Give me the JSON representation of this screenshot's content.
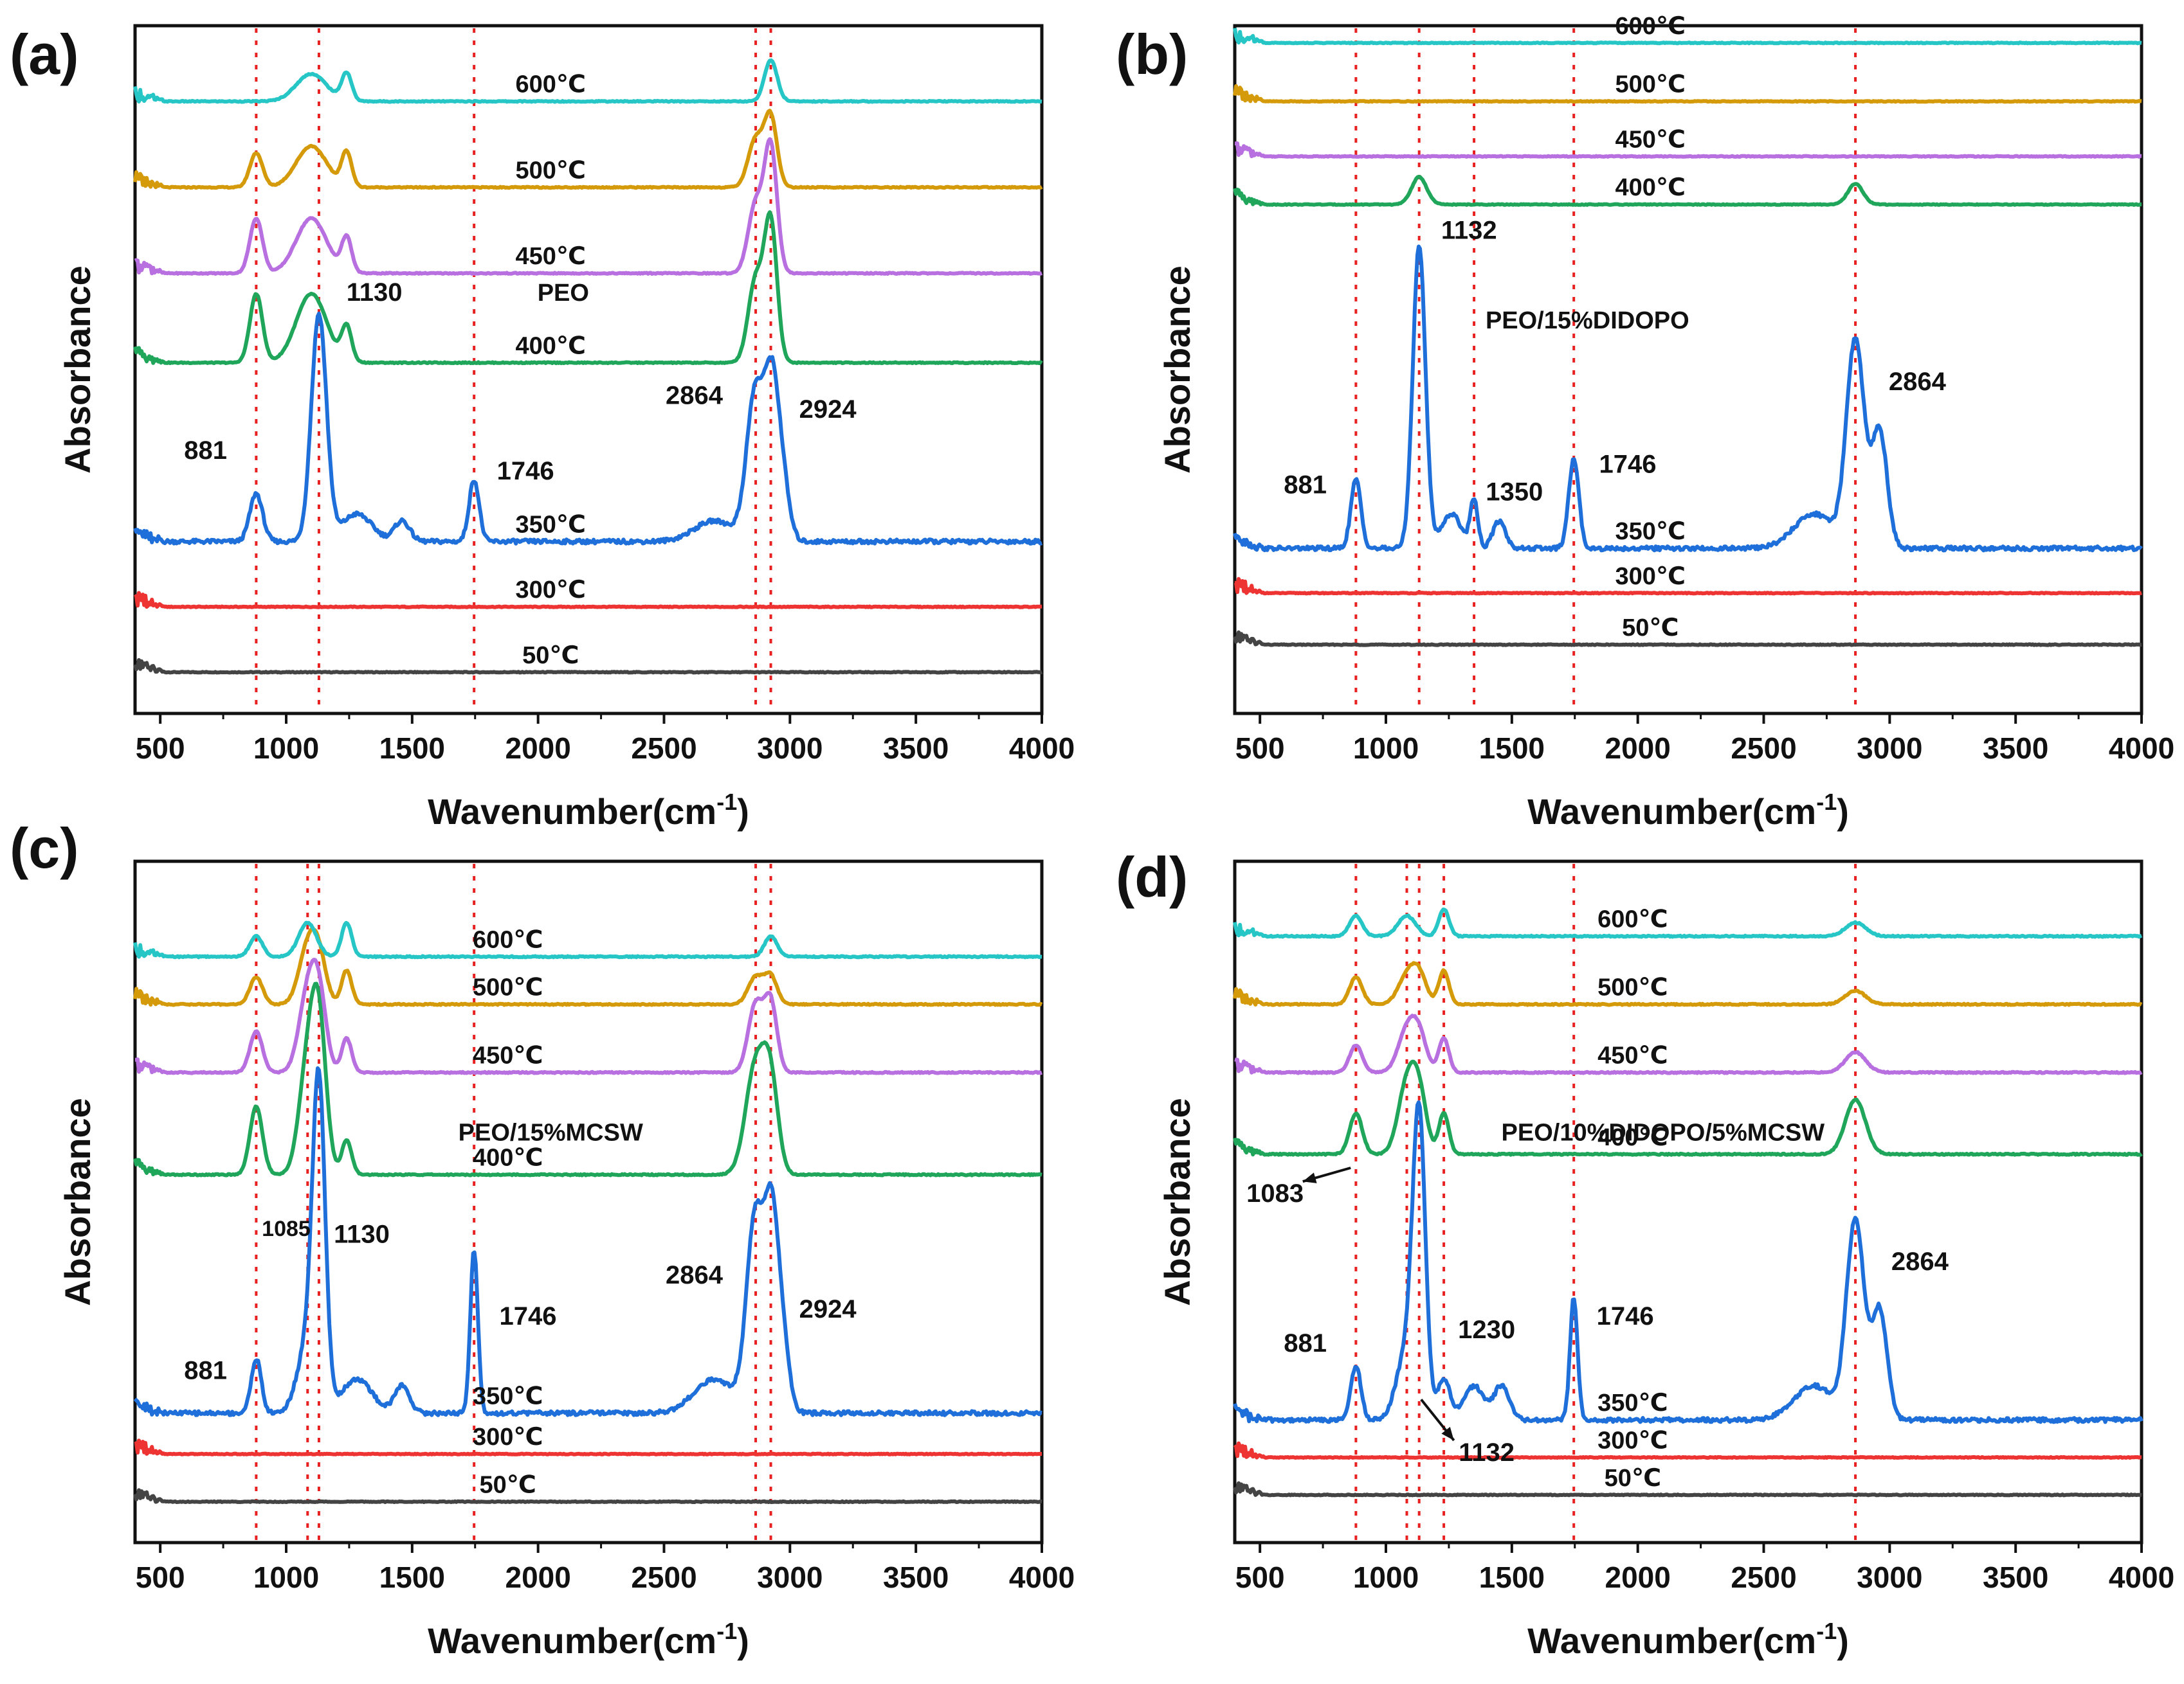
{
  "figure": {
    "colors": {
      "50": "#444444",
      "300": "#ee3333",
      "350": "#1e6fd9",
      "400": "#1fa65a",
      "450": "#b86fe0",
      "500": "#d49a0a",
      "600": "#27c6c6",
      "guide": "#e82020",
      "axis": "#111111"
    }
  },
  "chart_data": [
    {
      "type": "line",
      "panel_label": "(a)",
      "title": "",
      "xlabel": "Wavenumber(cm",
      "xlabel_sup": "-1",
      "xlabel_end": ")",
      "ylabel": "Absorbance",
      "xlim": [
        400,
        4000
      ],
      "xticks": [
        500,
        1000,
        1500,
        2000,
        2500,
        3000,
        3500,
        4000
      ],
      "guide_lines": [
        881,
        1130,
        1746,
        2864,
        2924
      ],
      "sample_label": {
        "text": "PEO",
        "x": 2100,
        "y": 0.6
      },
      "series": [
        {
          "name": "50℃",
          "color_key": "50",
          "baseline": 0.06,
          "label_x": 2050,
          "peaks": [],
          "scale": 0.2
        },
        {
          "name": "300℃",
          "color_key": "300",
          "baseline": 0.155,
          "label_x": 2050,
          "peaks": [],
          "scale": 0.2
        },
        {
          "name": "350℃",
          "color_key": "350",
          "baseline": 0.25,
          "label_x": 2050,
          "scale": 1,
          "peaks": [
            [
              881,
              0.07,
              25
            ],
            [
              1130,
              0.33,
              30
            ],
            [
              1280,
              0.04,
              60
            ],
            [
              1460,
              0.03,
              30
            ],
            [
              1746,
              0.09,
              20
            ],
            [
              2700,
              0.03,
              80
            ],
            [
              2864,
              0.22,
              35
            ],
            [
              2924,
              0.16,
              25
            ],
            [
              2960,
              0.12,
              30
            ]
          ]
        },
        {
          "name": "400℃",
          "color_key": "400",
          "baseline": 0.51,
          "label_x": 2050,
          "scale": 0.25,
          "peaks": [
            [
              881,
              0.1,
              25
            ],
            [
              1100,
              0.1,
              60
            ],
            [
              1240,
              0.05,
              20
            ],
            [
              2864,
              0.12,
              30
            ],
            [
              2924,
              0.2,
              25
            ]
          ]
        },
        {
          "name": "450℃",
          "color_key": "450",
          "baseline": 0.64,
          "label_x": 2050,
          "scale": 0.25,
          "peaks": [
            [
              881,
              0.08,
              25
            ],
            [
              1100,
              0.08,
              60
            ],
            [
              1240,
              0.05,
              20
            ],
            [
              2864,
              0.1,
              30
            ],
            [
              2924,
              0.18,
              25
            ]
          ]
        },
        {
          "name": "500℃",
          "color_key": "500",
          "baseline": 0.765,
          "label_x": 2050,
          "scale": 0.25,
          "peaks": [
            [
              881,
              0.05,
              25
            ],
            [
              1100,
              0.06,
              60
            ],
            [
              1240,
              0.05,
              20
            ],
            [
              2864,
              0.07,
              30
            ],
            [
              2924,
              0.1,
              25
            ]
          ]
        },
        {
          "name": "600℃",
          "color_key": "600",
          "baseline": 0.89,
          "label_x": 2050,
          "scale": 0.25,
          "peaks": [
            [
              1100,
              0.04,
              60
            ],
            [
              1240,
              0.04,
              20
            ],
            [
              2924,
              0.06,
              25
            ]
          ]
        }
      ],
      "annotations": [
        {
          "text": "881",
          "x": 680,
          "y": 0.37
        },
        {
          "text": "1130",
          "x": 1350,
          "y": 0.6
        },
        {
          "text": "1746",
          "x": 1950,
          "y": 0.34
        },
        {
          "text": "2864",
          "x": 2620,
          "y": 0.45
        },
        {
          "text": "2924",
          "x": 3150,
          "y": 0.43
        }
      ],
      "arrows": []
    },
    {
      "type": "line",
      "panel_label": "(b)",
      "title": "",
      "xlabel": "Wavenumber(cm",
      "xlabel_sup": "-1",
      "xlabel_end": ")",
      "ylabel": "Absorbance",
      "xlim": [
        400,
        4000
      ],
      "xticks": [
        500,
        1000,
        1500,
        2000,
        2500,
        3000,
        3500,
        4000
      ],
      "guide_lines": [
        881,
        1132,
        1350,
        1746,
        2864
      ],
      "sample_label": {
        "text": "PEO/15%DIDOPO",
        "x": 1800,
        "y": 0.56
      },
      "series": [
        {
          "name": "50℃",
          "color_key": "50",
          "baseline": 0.1,
          "label_x": 2050,
          "peaks": [],
          "scale": 0.2
        },
        {
          "name": "300℃",
          "color_key": "300",
          "baseline": 0.175,
          "label_x": 2050,
          "peaks": [],
          "scale": 0.2
        },
        {
          "name": "350℃",
          "color_key": "350",
          "baseline": 0.24,
          "label_x": 2050,
          "scale": 1,
          "peaks": [
            [
              881,
              0.1,
              20
            ],
            [
              1132,
              0.44,
              25
            ],
            [
              1260,
              0.05,
              40
            ],
            [
              1350,
              0.07,
              15
            ],
            [
              1450,
              0.04,
              25
            ],
            [
              1746,
              0.13,
              20
            ],
            [
              2700,
              0.05,
              80
            ],
            [
              2864,
              0.3,
              35
            ],
            [
              2960,
              0.17,
              30
            ]
          ]
        },
        {
          "name": "400℃",
          "color_key": "400",
          "baseline": 0.74,
          "label_x": 2050,
          "scale": 0.2,
          "peaks": [
            [
              1132,
              0.04,
              30
            ],
            [
              2864,
              0.03,
              30
            ]
          ]
        },
        {
          "name": "450℃",
          "color_key": "450",
          "baseline": 0.81,
          "label_x": 2050,
          "scale": 0.2,
          "peaks": []
        },
        {
          "name": "500℃",
          "color_key": "500",
          "baseline": 0.89,
          "label_x": 2050,
          "scale": 0.2,
          "peaks": []
        },
        {
          "name": "600℃",
          "color_key": "600",
          "baseline": 0.975,
          "label_x": 2050,
          "scale": 0.2,
          "peaks": []
        }
      ],
      "annotations": [
        {
          "text": "881",
          "x": 680,
          "y": 0.32
        },
        {
          "text": "1132",
          "x": 1330,
          "y": 0.69
        },
        {
          "text": "1350",
          "x": 1510,
          "y": 0.31
        },
        {
          "text": "1746",
          "x": 1960,
          "y": 0.35
        },
        {
          "text": "2864",
          "x": 3110,
          "y": 0.47
        }
      ],
      "arrows": []
    },
    {
      "type": "line",
      "panel_label": "(c)",
      "title": "",
      "xlabel": "Wavenumber(cm",
      "xlabel_sup": "-1",
      "xlabel_end": ")",
      "ylabel": "Absorbance",
      "xlim": [
        400,
        4000
      ],
      "xticks": [
        500,
        1000,
        1500,
        2000,
        2500,
        3000,
        3500,
        4000
      ],
      "guide_lines": [
        881,
        1085,
        1130,
        1746,
        2864,
        2924
      ],
      "sample_label": {
        "text": "PEO/15%MCSW",
        "x": 2050,
        "y": 0.59
      },
      "series": [
        {
          "name": "50℃",
          "color_key": "50",
          "baseline": 0.06,
          "label_x": 1880,
          "peaks": [],
          "scale": 0.2
        },
        {
          "name": "300℃",
          "color_key": "300",
          "baseline": 0.13,
          "label_x": 1880,
          "peaks": [],
          "scale": 0.2
        },
        {
          "name": "350℃",
          "color_key": "350",
          "baseline": 0.19,
          "label_x": 1880,
          "scale": 1,
          "peaks": [
            [
              881,
              0.08,
              20
            ],
            [
              1085,
              0.1,
              40
            ],
            [
              1130,
              0.45,
              25
            ],
            [
              1280,
              0.05,
              60
            ],
            [
              1460,
              0.04,
              30
            ],
            [
              1746,
              0.24,
              15
            ],
            [
              2700,
              0.05,
              80
            ],
            [
              2864,
              0.29,
              35
            ],
            [
              2924,
              0.2,
              25
            ],
            [
              2960,
              0.14,
              30
            ]
          ]
        },
        {
          "name": "400℃",
          "color_key": "400",
          "baseline": 0.54,
          "label_x": 1880,
          "scale": 0.3,
          "peaks": [
            [
              881,
              0.1,
              25
            ],
            [
              1085,
              0.15,
              35
            ],
            [
              1130,
              0.2,
              30
            ],
            [
              1240,
              0.05,
              20
            ],
            [
              2864,
              0.16,
              40
            ],
            [
              2924,
              0.12,
              30
            ]
          ]
        },
        {
          "name": "450℃",
          "color_key": "450",
          "baseline": 0.69,
          "label_x": 1880,
          "scale": 0.3,
          "peaks": [
            [
              881,
              0.06,
              25
            ],
            [
              1085,
              0.11,
              35
            ],
            [
              1130,
              0.1,
              30
            ],
            [
              1240,
              0.05,
              20
            ],
            [
              2864,
              0.1,
              30
            ],
            [
              2924,
              0.1,
              25
            ]
          ]
        },
        {
          "name": "500℃",
          "color_key": "500",
          "baseline": 0.79,
          "label_x": 1880,
          "scale": 0.3,
          "peaks": [
            [
              881,
              0.04,
              25
            ],
            [
              1085,
              0.08,
              35
            ],
            [
              1130,
              0.06,
              30
            ],
            [
              1240,
              0.05,
              20
            ],
            [
              2864,
              0.04,
              30
            ],
            [
              2924,
              0.04,
              25
            ]
          ]
        },
        {
          "name": "600℃",
          "color_key": "600",
          "baseline": 0.86,
          "label_x": 1880,
          "scale": 0.3,
          "peaks": [
            [
              881,
              0.03,
              25
            ],
            [
              1085,
              0.05,
              35
            ],
            [
              1240,
              0.05,
              20
            ],
            [
              2924,
              0.03,
              25
            ]
          ]
        }
      ],
      "annotations": [
        {
          "text": "881",
          "x": 680,
          "y": 0.24
        },
        {
          "text": "1085",
          "x": 1000,
          "y": 0.45,
          "small": true
        },
        {
          "text": "1130",
          "x": 1300,
          "y": 0.44
        },
        {
          "text": "1746",
          "x": 1960,
          "y": 0.32
        },
        {
          "text": "2864",
          "x": 2620,
          "y": 0.38
        },
        {
          "text": "2924",
          "x": 3150,
          "y": 0.33
        }
      ],
      "arrows": []
    },
    {
      "type": "line",
      "panel_label": "(d)",
      "title": "",
      "xlabel": "Wavenumber(cm",
      "xlabel_sup": "-1",
      "xlabel_end": ")",
      "ylabel": "Absorbance",
      "xlim": [
        400,
        4000
      ],
      "xticks": [
        500,
        1000,
        1500,
        2000,
        2500,
        3000,
        3500,
        4000
      ],
      "guide_lines": [
        881,
        1083,
        1132,
        1230,
        1746,
        2864
      ],
      "sample_label": {
        "text": "PEO/10%DIDOPO/5%MCSW",
        "x": 2100,
        "y": 0.59
      },
      "series": [
        {
          "name": "50℃",
          "color_key": "50",
          "baseline": 0.07,
          "label_x": 1980,
          "peaks": [],
          "scale": 0.2
        },
        {
          "name": "300℃",
          "color_key": "300",
          "baseline": 0.125,
          "label_x": 1980,
          "peaks": [],
          "scale": 0.2
        },
        {
          "name": "350℃",
          "color_key": "350",
          "baseline": 0.18,
          "label_x": 1980,
          "scale": 1,
          "peaks": [
            [
              881,
              0.08,
              20
            ],
            [
              1083,
              0.1,
              40
            ],
            [
              1132,
              0.42,
              25
            ],
            [
              1230,
              0.06,
              25
            ],
            [
              1350,
              0.05,
              40
            ],
            [
              1460,
              0.05,
              30
            ],
            [
              1746,
              0.18,
              15
            ],
            [
              2700,
              0.05,
              80
            ],
            [
              2864,
              0.29,
              35
            ],
            [
              2960,
              0.16,
              30
            ]
          ]
        },
        {
          "name": "400℃",
          "color_key": "400",
          "baseline": 0.57,
          "label_x": 1980,
          "scale": 0.3,
          "peaks": [
            [
              881,
              0.06,
              25
            ],
            [
              1083,
              0.1,
              35
            ],
            [
              1132,
              0.08,
              30
            ],
            [
              1230,
              0.06,
              20
            ],
            [
              2864,
              0.08,
              40
            ]
          ]
        },
        {
          "name": "450℃",
          "color_key": "450",
          "baseline": 0.69,
          "label_x": 1980,
          "scale": 0.3,
          "peaks": [
            [
              881,
              0.04,
              25
            ],
            [
              1083,
              0.06,
              35
            ],
            [
              1132,
              0.05,
              30
            ],
            [
              1230,
              0.05,
              20
            ],
            [
              2864,
              0.03,
              40
            ]
          ]
        },
        {
          "name": "500℃",
          "color_key": "500",
          "baseline": 0.79,
          "label_x": 1980,
          "scale": 0.3,
          "peaks": [
            [
              881,
              0.04,
              25
            ],
            [
              1083,
              0.04,
              35
            ],
            [
              1132,
              0.04,
              30
            ],
            [
              1230,
              0.05,
              20
            ],
            [
              2864,
              0.02,
              40
            ]
          ]
        },
        {
          "name": "600℃",
          "color_key": "600",
          "baseline": 0.89,
          "label_x": 1980,
          "scale": 0.3,
          "peaks": [
            [
              881,
              0.03,
              25
            ],
            [
              1083,
              0.03,
              35
            ],
            [
              1230,
              0.04,
              20
            ],
            [
              2864,
              0.02,
              40
            ]
          ]
        }
      ],
      "annotations": [
        {
          "text": "881",
          "x": 680,
          "y": 0.28
        },
        {
          "text": "1230",
          "x": 1400,
          "y": 0.3
        },
        {
          "text": "1746",
          "x": 1950,
          "y": 0.32
        },
        {
          "text": "2864",
          "x": 3120,
          "y": 0.4
        },
        {
          "text": "1083",
          "x": 560,
          "y": 0.5
        },
        {
          "text": "1132",
          "x": 1400,
          "y": 0.12
        }
      ],
      "arrows": [
        {
          "from": [
            860,
            0.55
          ],
          "to": [
            670,
            0.53
          ]
        },
        {
          "from": [
            1140,
            0.21
          ],
          "to": [
            1270,
            0.15
          ]
        }
      ]
    }
  ]
}
